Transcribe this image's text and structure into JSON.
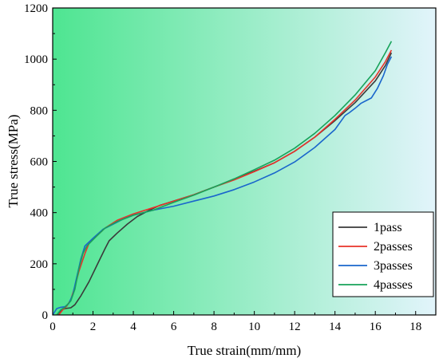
{
  "chart_data": {
    "type": "line",
    "title": "",
    "xlabel": "True strain(mm/mm)",
    "ylabel": "True stress(MPa)",
    "xlim": [
      0,
      19
    ],
    "ylim": [
      0,
      1200
    ],
    "x_ticks": [
      0,
      2,
      4,
      6,
      8,
      10,
      12,
      14,
      16,
      18
    ],
    "y_ticks": [
      0,
      200,
      400,
      600,
      800,
      1000,
      1200
    ],
    "grid": false,
    "legend_position": "bottom-right",
    "background_gradient": [
      "#4ee591",
      "#e2f4fb"
    ],
    "series": [
      {
        "name": "1pass",
        "color": "#3a3a3a",
        "points": [
          [
            0.3,
            0
          ],
          [
            0.4,
            18
          ],
          [
            0.6,
            25
          ],
          [
            0.9,
            28
          ],
          [
            1.1,
            40
          ],
          [
            1.4,
            75
          ],
          [
            1.8,
            130
          ],
          [
            2.2,
            195
          ],
          [
            2.6,
            260
          ],
          [
            2.8,
            290
          ],
          [
            3.2,
            320
          ],
          [
            3.7,
            355
          ],
          [
            4.2,
            385
          ],
          [
            4.8,
            410
          ],
          [
            5.3,
            428
          ],
          [
            6,
            445
          ],
          [
            7,
            470
          ],
          [
            8,
            500
          ],
          [
            9,
            530
          ],
          [
            10,
            562
          ],
          [
            11,
            595
          ],
          [
            12,
            640
          ],
          [
            13,
            695
          ],
          [
            14,
            760
          ],
          [
            15,
            830
          ],
          [
            16,
            915
          ],
          [
            16.5,
            975
          ],
          [
            16.8,
            1025
          ]
        ]
      },
      {
        "name": "2passes",
        "color": "#e8322a",
        "points": [
          [
            0.3,
            0
          ],
          [
            0.5,
            20
          ],
          [
            0.7,
            35
          ],
          [
            0.9,
            60
          ],
          [
            1.1,
            110
          ],
          [
            1.3,
            170
          ],
          [
            1.6,
            240
          ],
          [
            1.8,
            280
          ],
          [
            2.2,
            310
          ],
          [
            2.6,
            340
          ],
          [
            3.2,
            370
          ],
          [
            4,
            395
          ],
          [
            5,
            420
          ],
          [
            6,
            445
          ],
          [
            7,
            470
          ],
          [
            8,
            500
          ],
          [
            9,
            528
          ],
          [
            10,
            560
          ],
          [
            11,
            595
          ],
          [
            12,
            640
          ],
          [
            13,
            695
          ],
          [
            14,
            765
          ],
          [
            15,
            840
          ],
          [
            16,
            930
          ],
          [
            16.5,
            990
          ],
          [
            16.8,
            1035
          ]
        ]
      },
      {
        "name": "3passes",
        "color": "#1a66cc",
        "points": [
          [
            0,
            0
          ],
          [
            0.2,
            25
          ],
          [
            0.4,
            30
          ],
          [
            0.6,
            32
          ],
          [
            0.8,
            45
          ],
          [
            1,
            80
          ],
          [
            1.2,
            150
          ],
          [
            1.4,
            220
          ],
          [
            1.6,
            270
          ],
          [
            2,
            300
          ],
          [
            2.5,
            335
          ],
          [
            3,
            355
          ],
          [
            3.5,
            375
          ],
          [
            4,
            390
          ],
          [
            5,
            410
          ],
          [
            6,
            425
          ],
          [
            7,
            445
          ],
          [
            8,
            465
          ],
          [
            9,
            490
          ],
          [
            10,
            520
          ],
          [
            11,
            555
          ],
          [
            12,
            598
          ],
          [
            13,
            655
          ],
          [
            14,
            725
          ],
          [
            14.5,
            780
          ],
          [
            14.7,
            790
          ],
          [
            15,
            808
          ],
          [
            15.3,
            828
          ],
          [
            15.6,
            840
          ],
          [
            15.8,
            848
          ],
          [
            16.1,
            885
          ],
          [
            16.4,
            935
          ],
          [
            16.6,
            980
          ],
          [
            16.8,
            1010
          ]
        ]
      },
      {
        "name": "4passes",
        "color": "#17a35a",
        "points": [
          [
            0.2,
            0
          ],
          [
            0.4,
            20
          ],
          [
            0.6,
            30
          ],
          [
            0.9,
            55
          ],
          [
            1.1,
            100
          ],
          [
            1.3,
            180
          ],
          [
            1.5,
            240
          ],
          [
            1.7,
            270
          ],
          [
            2.2,
            310
          ],
          [
            2.6,
            340
          ],
          [
            3.2,
            365
          ],
          [
            4,
            390
          ],
          [
            5,
            410
          ],
          [
            6,
            440
          ],
          [
            7,
            468
          ],
          [
            8,
            500
          ],
          [
            9,
            532
          ],
          [
            10,
            568
          ],
          [
            11,
            605
          ],
          [
            12,
            652
          ],
          [
            13,
            710
          ],
          [
            14,
            780
          ],
          [
            15,
            860
          ],
          [
            16,
            955
          ],
          [
            16.5,
            1025
          ],
          [
            16.8,
            1070
          ]
        ]
      }
    ]
  }
}
